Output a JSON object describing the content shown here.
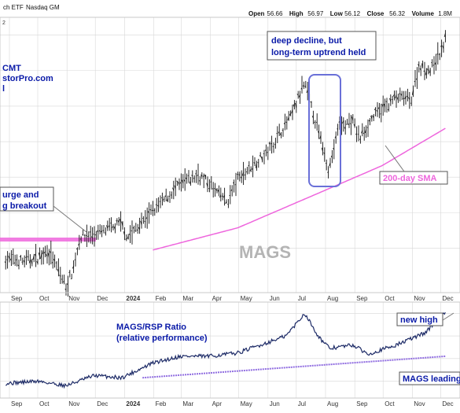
{
  "header": {
    "symbol_text": "ch ETF",
    "exchange": "Nasdaq GM",
    "quote": [
      {
        "label": "Open",
        "value": "56.66"
      },
      {
        "label": "High",
        "value": "56.97"
      },
      {
        "label": "Low",
        "value": "56.12"
      },
      {
        "label": "Close",
        "value": "56.32"
      },
      {
        "label": "Volume",
        "value": "1.8M"
      }
    ],
    "small_tag": "2"
  },
  "watermark": {
    "line1": "CMT",
    "line2": "storPro.com",
    "line3": "l"
  },
  "colors": {
    "price": "#111111",
    "sma": "#ee66dd",
    "ratio": "#1c2a66",
    "annotation_text": "#0a1aa8",
    "box": "#6a70d8",
    "breakout_band": "#ee66dd",
    "grid": "#d8d8d8",
    "ratio_trendline": "#8f6ce0"
  },
  "chart_data": [
    {
      "type": "line",
      "title": "",
      "symbol_label": "MAGS",
      "x_ticks": [
        "Sep",
        "Oct",
        "Nov",
        "Dec",
        "2024",
        "Feb",
        "Mar",
        "Apr",
        "May",
        "Jun",
        "Jul",
        "Aug",
        "Sep",
        "Oct",
        "Nov",
        "Dec"
      ],
      "price_anchors": [
        {
          "date": "2023-08-28",
          "value": 38.8
        },
        {
          "date": "2023-09-15",
          "value": 38.5
        },
        {
          "date": "2023-10-01",
          "value": 38.9
        },
        {
          "date": "2023-10-12",
          "value": 39.8
        },
        {
          "date": "2023-10-25",
          "value": 37.0
        },
        {
          "date": "2023-10-31",
          "value": 35.6
        },
        {
          "date": "2023-11-08",
          "value": 37.8
        },
        {
          "date": "2023-11-15",
          "value": 41.3
        },
        {
          "date": "2023-12-01",
          "value": 41.5
        },
        {
          "date": "2023-12-29",
          "value": 42.8
        },
        {
          "date": "2024-01-04",
          "value": 41.2
        },
        {
          "date": "2024-01-31",
          "value": 44.2
        },
        {
          "date": "2024-02-29",
          "value": 47.2
        },
        {
          "date": "2024-03-20",
          "value": 48.3
        },
        {
          "date": "2024-04-19",
          "value": 45.2
        },
        {
          "date": "2024-04-30",
          "value": 47.8
        },
        {
          "date": "2024-05-31",
          "value": 50.8
        },
        {
          "date": "2024-06-25",
          "value": 54.8
        },
        {
          "date": "2024-07-10",
          "value": 58.5
        },
        {
          "date": "2024-07-24",
          "value": 53.3
        },
        {
          "date": "2024-08-05",
          "value": 48.8
        },
        {
          "date": "2024-08-15",
          "value": 53.8
        },
        {
          "date": "2024-08-30",
          "value": 54.2
        },
        {
          "date": "2024-09-06",
          "value": 52.3
        },
        {
          "date": "2024-09-20",
          "value": 54.8
        },
        {
          "date": "2024-10-15",
          "value": 57.0
        },
        {
          "date": "2024-10-31",
          "value": 56.8
        },
        {
          "date": "2024-11-08",
          "value": 60.5
        },
        {
          "date": "2024-11-20",
          "value": 60.0
        },
        {
          "date": "2024-12-02",
          "value": 62.3
        },
        {
          "date": "2024-12-06",
          "value": 63.5
        }
      ],
      "sma": {
        "label": "200-day SMA",
        "anchors": [
          {
            "date": "2024-01-31",
            "value": 39.8
          },
          {
            "date": "2024-04-30",
            "value": 42.3
          },
          {
            "date": "2024-07-31",
            "value": 46.5
          },
          {
            "date": "2024-09-30",
            "value": 49.3
          },
          {
            "date": "2024-12-06",
            "value": 53.5
          }
        ]
      },
      "y_range": [
        35,
        66
      ],
      "grid": true
    },
    {
      "type": "line",
      "title": "",
      "series_label": "MAGS/RSP Ratio\n(relative performance)",
      "x_ticks": [
        "Sep",
        "Oct",
        "Nov",
        "Dec",
        "2024",
        "Feb",
        "Mar",
        "Apr",
        "May",
        "Jun",
        "Jul",
        "Aug",
        "Sep",
        "Oct",
        "Nov",
        "Dec"
      ],
      "ratio_anchors": [
        {
          "date": "2023-08-28",
          "value": 0.238
        },
        {
          "date": "2023-10-01",
          "value": 0.24
        },
        {
          "date": "2023-10-31",
          "value": 0.236
        },
        {
          "date": "2023-11-30",
          "value": 0.245
        },
        {
          "date": "2023-12-29",
          "value": 0.243
        },
        {
          "date": "2024-01-31",
          "value": 0.256
        },
        {
          "date": "2024-02-29",
          "value": 0.262
        },
        {
          "date": "2024-03-31",
          "value": 0.262
        },
        {
          "date": "2024-04-30",
          "value": 0.265
        },
        {
          "date": "2024-05-31",
          "value": 0.274
        },
        {
          "date": "2024-06-20",
          "value": 0.28
        },
        {
          "date": "2024-07-10",
          "value": 0.3
        },
        {
          "date": "2024-07-25",
          "value": 0.279
        },
        {
          "date": "2024-08-05",
          "value": 0.269
        },
        {
          "date": "2024-08-30",
          "value": 0.272
        },
        {
          "date": "2024-09-15",
          "value": 0.264
        },
        {
          "date": "2024-10-15",
          "value": 0.272
        },
        {
          "date": "2024-11-15",
          "value": 0.283
        },
        {
          "date": "2024-12-06",
          "value": 0.302
        }
      ],
      "trendline_anchors": [
        {
          "date": "2024-01-20",
          "value": 0.243
        },
        {
          "date": "2024-12-06",
          "value": 0.262
        }
      ],
      "y_range": [
        0.225,
        0.31
      ],
      "grid": true
    }
  ],
  "annotations": {
    "deep_decline_1": "deep decline, but",
    "deep_decline_2": "long-term uptrend held",
    "surge_1": "urge and",
    "surge_2": "g breakout",
    "sma_label": "200-day SMA",
    "symbol_label": "MAGS",
    "ratio_label_1": "MAGS/RSP Ratio",
    "ratio_label_2": "(relative performance)",
    "new_high": "new high",
    "mags_leading": "MAGS leading"
  }
}
